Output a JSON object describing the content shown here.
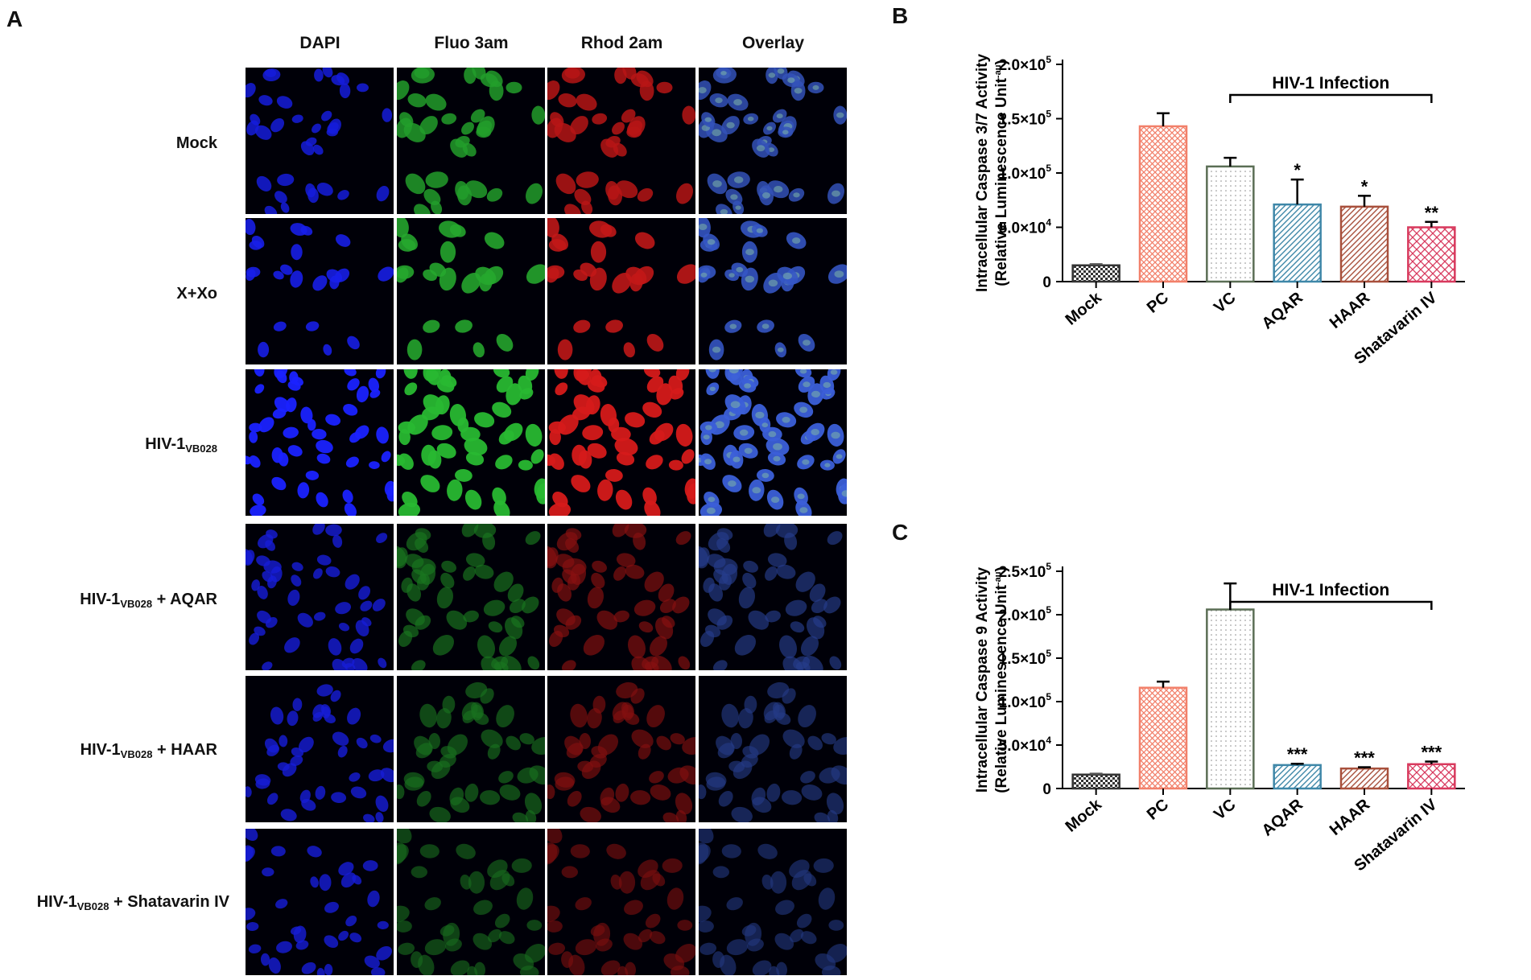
{
  "panel_a": {
    "letter": "A",
    "columns": [
      "DAPI",
      "Fluo 3am",
      "Rhod 2am",
      "Overlay"
    ],
    "rows": [
      {
        "label": "Mock",
        "sub": "",
        "suffix": "",
        "density": 0.55,
        "level": 0.75,
        "pattern": "sparse"
      },
      {
        "label": "X+Xo",
        "sub": "",
        "suffix": "",
        "density": 0.6,
        "level": 0.85,
        "pattern": "patch"
      },
      {
        "label": "HIV-1",
        "sub": "VB028",
        "suffix": "",
        "density": 1.0,
        "level": 1.0,
        "pattern": "dense"
      },
      {
        "label": "HIV-1",
        "sub": "VB028",
        "suffix": " + AQAR",
        "density": 0.9,
        "level": 0.35,
        "pattern": "dense"
      },
      {
        "label": "HIV-1",
        "sub": "VB028",
        "suffix": " + HAAR",
        "density": 0.85,
        "level": 0.3,
        "pattern": "corner"
      },
      {
        "label": "HIV-1",
        "sub": "VB028",
        "suffix": " + Shatavarin  IV",
        "density": 0.8,
        "level": 0.25,
        "pattern": "corner"
      }
    ],
    "channel_colors": {
      "DAPI": "#1a22ff",
      "Fluo 3am": "#28b832",
      "Rhod 2am": "#d51a1a",
      "Overlay": "#3b5fd8"
    }
  },
  "chart_data": [
    {
      "panel_letter": "B",
      "type": "bar",
      "ylabel_line1": "Intracellular Caspase 3/7 Activity",
      "ylabel_line2": "(Relative Luminescence Unit",
      "ylabel_sup": "-au",
      "categories": [
        "Mock",
        "PC",
        "VC",
        "AQAR",
        "HAAR",
        "Shatavarin IV"
      ],
      "values": [
        15000,
        143000,
        106000,
        71000,
        69000,
        50000
      ],
      "errors": [
        1000,
        12000,
        8000,
        23000,
        10000,
        5000
      ],
      "significance": [
        "",
        "",
        "",
        "*",
        "*",
        "**"
      ],
      "colors": [
        "#333333",
        "#f2806a",
        "#5b6e55",
        "#3e87a8",
        "#a8503c",
        "#d83a5e"
      ],
      "patterns": [
        "check",
        "crosshatch",
        "dots",
        "diag",
        "diag",
        "xhatch"
      ],
      "ylim": [
        0,
        200000
      ],
      "yticks": [
        0,
        50000,
        100000,
        150000,
        200000
      ],
      "ytick_labels": [
        "0",
        "5.0×10",
        "1.0×10",
        "1.5×10",
        "2.0×10"
      ],
      "ytick_exps": [
        "",
        "4",
        "5",
        "5",
        "5"
      ],
      "bracket_label": "HIV-1 Infection",
      "bracket_from": "VC",
      "bracket_to": "Shatavarin IV"
    },
    {
      "panel_letter": "C",
      "type": "bar",
      "ylabel_line1": "Intracellular Caspase 9 Activity",
      "ylabel_line2": "(Relative Luminescence Unit",
      "ylabel_sup": "-au",
      "categories": [
        "Mock",
        "PC",
        "VC",
        "AQAR",
        "HAAR",
        "Shatavarin IV"
      ],
      "values": [
        16000,
        116000,
        206000,
        27000,
        23000,
        28000
      ],
      "errors": [
        1000,
        7000,
        30000,
        1500,
        1500,
        3000
      ],
      "significance": [
        "",
        "",
        "",
        "***",
        "***",
        "***"
      ],
      "colors": [
        "#333333",
        "#f2806a",
        "#5b6e55",
        "#3e87a8",
        "#a8503c",
        "#d83a5e"
      ],
      "patterns": [
        "check",
        "crosshatch",
        "dots",
        "diag",
        "diag",
        "xhatch"
      ],
      "ylim": [
        0,
        250000
      ],
      "yticks": [
        0,
        50000,
        100000,
        150000,
        200000,
        250000
      ],
      "ytick_labels": [
        "0",
        "5.0×10",
        "1.0×10",
        "1.5×10",
        "2.0×10",
        "2.5×10"
      ],
      "ytick_exps": [
        "",
        "4",
        "5",
        "5",
        "5",
        "5"
      ],
      "bracket_label": "HIV-1 Infection",
      "bracket_from": "VC",
      "bracket_to": "Shatavarin IV"
    }
  ]
}
